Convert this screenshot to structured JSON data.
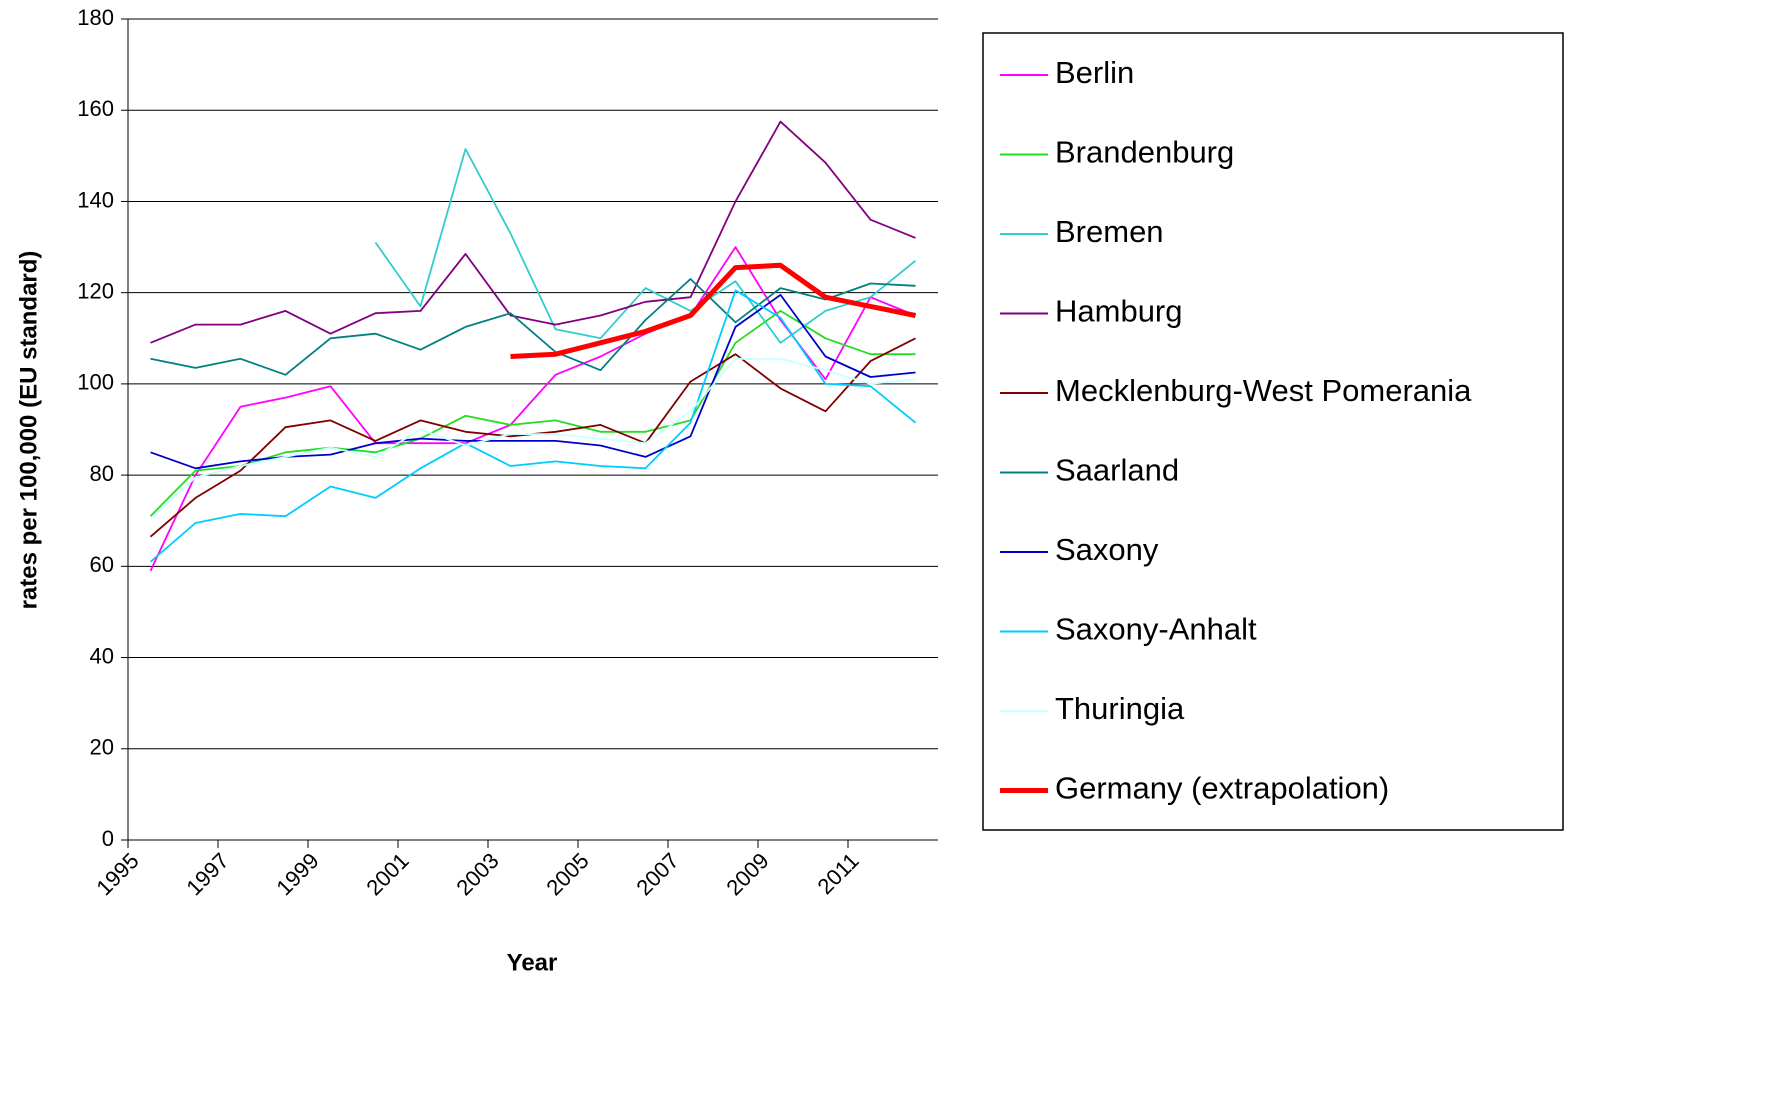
{
  "chart_data": {
    "type": "line",
    "x_label": "Year",
    "y_label": "rates per 100,000 (EU standard)",
    "x": [
      1995.5,
      1996.5,
      1997.5,
      1998.5,
      1999.5,
      2000.5,
      2001.5,
      2002.5,
      2003.5,
      2004.5,
      2005.5,
      2006.5,
      2007.5,
      2008.5,
      2009.5,
      2010.5,
      2011.5,
      2012.5
    ],
    "xlim": [
      1995,
      2013
    ],
    "xticks": [
      1995,
      1997,
      1999,
      2001,
      2003,
      2005,
      2007,
      2009,
      2011
    ],
    "ylim": [
      0,
      180
    ],
    "yticks": [
      0,
      20,
      40,
      60,
      80,
      100,
      120,
      140,
      160,
      180
    ],
    "grid": true,
    "legend": "right",
    "series": [
      {
        "name": "Berlin",
        "color": "#ff00ff",
        "values": [
          59,
          80,
          95,
          97,
          99.5,
          87,
          87,
          87,
          91,
          102,
          106,
          111,
          115,
          130,
          114,
          101,
          119,
          115
        ]
      },
      {
        "name": "Brandenburg",
        "color": "#22dd22",
        "values": [
          71,
          81,
          82,
          85,
          86,
          85,
          88,
          93,
          91,
          92,
          89.5,
          89.5,
          92,
          109,
          116,
          110,
          106.5,
          106.5
        ]
      },
      {
        "name": "Bremen",
        "color": "#33cccc",
        "values": [
          null,
          null,
          null,
          null,
          null,
          131,
          117,
          151.5,
          133,
          112,
          110,
          121,
          116,
          122.5,
          109,
          116,
          119,
          127
        ]
      },
      {
        "name": "Hamburg",
        "color": "#800080",
        "values": [
          109,
          113,
          113,
          116,
          111,
          115.5,
          116,
          128.5,
          115,
          113,
          115,
          118,
          119,
          140,
          157.5,
          148.5,
          136,
          132
        ]
      },
      {
        "name": "Mecklenburg-West Pomerania",
        "color": "#800000",
        "values": [
          66.5,
          75,
          81,
          90.5,
          92,
          87.5,
          92,
          89.5,
          88.5,
          89.5,
          91,
          87,
          100.5,
          106.5,
          99,
          94,
          105,
          110
        ]
      },
      {
        "name": "Saarland",
        "color": "#008080",
        "values": [
          105.5,
          103.5,
          105.5,
          102,
          110,
          111,
          107.5,
          112.5,
          115.5,
          107,
          103,
          114,
          123,
          113.5,
          121,
          118.5,
          122,
          121.5
        ]
      },
      {
        "name": "Saxony",
        "color": "#0000cc",
        "values": [
          85,
          81.5,
          83,
          84,
          84.5,
          87,
          88,
          87.5,
          87.5,
          87.5,
          86.5,
          84,
          88.5,
          112.5,
          119.5,
          106,
          101.5,
          102.5
        ]
      },
      {
        "name": "Saxony-Anhalt",
        "color": "#00ccff",
        "values": [
          61,
          69.5,
          71.5,
          71,
          77.5,
          75,
          81.5,
          87,
          82,
          83,
          82,
          81.5,
          91.5,
          120.5,
          114.5,
          100,
          99.5,
          91.5
        ]
      },
      {
        "name": "Thuringia",
        "color": "#ccffff",
        "values": [
          70.5,
          79.5,
          82,
          84,
          86,
          84,
          90,
          86.5,
          89,
          89,
          88,
          87,
          94,
          105.5,
          105.5,
          103,
          100,
          101
        ]
      },
      {
        "name": "Germany (extrapolation)",
        "color": "#ff0000",
        "values": [
          null,
          null,
          null,
          null,
          null,
          null,
          null,
          null,
          106,
          106.5,
          109,
          111.5,
          115,
          125.5,
          126,
          119,
          117,
          115
        ]
      }
    ]
  }
}
